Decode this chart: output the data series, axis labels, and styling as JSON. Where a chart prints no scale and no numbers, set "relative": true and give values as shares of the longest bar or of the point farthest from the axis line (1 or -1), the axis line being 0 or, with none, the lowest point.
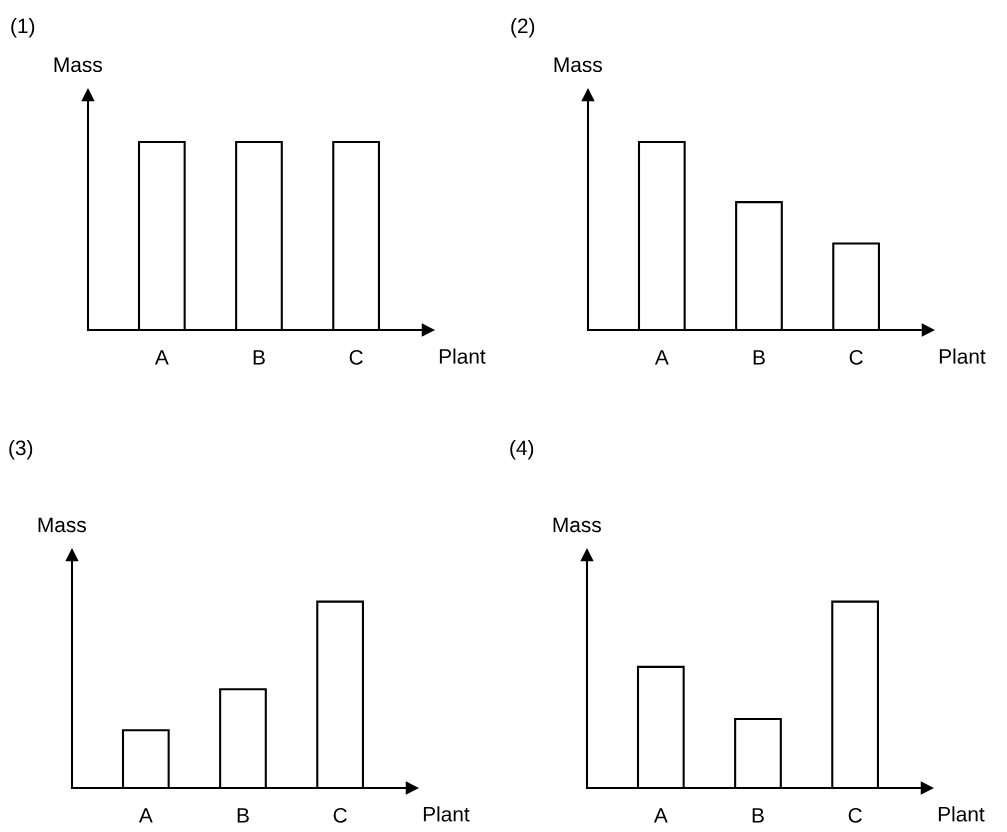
{
  "chart_data": [
    {
      "type": "bar",
      "title": "(1)",
      "xlabel": "Plant",
      "ylabel": "Mass",
      "categories": [
        "A",
        "B",
        "C"
      ],
      "values": [
        1,
        1,
        1
      ],
      "relative": true,
      "color": "#ffffff"
    },
    {
      "type": "bar",
      "title": "(2)",
      "xlabel": "Plant",
      "ylabel": "Mass",
      "categories": [
        "A",
        "B",
        "C"
      ],
      "values": [
        1,
        0.68,
        0.46
      ],
      "relative": true,
      "color": "#ffffff"
    },
    {
      "type": "bar",
      "title": "(3)",
      "xlabel": "Plant",
      "ylabel": "Mass",
      "categories": [
        "A",
        "B",
        "C"
      ],
      "values": [
        0.31,
        0.53,
        1
      ],
      "relative": true,
      "color": "#ffffff"
    },
    {
      "type": "bar",
      "title": "(4)",
      "xlabel": "Plant",
      "ylabel": "Mass",
      "categories": [
        "A",
        "B",
        "C"
      ],
      "values": [
        0.65,
        0.37,
        1
      ],
      "relative": true,
      "color": "#ffffff"
    }
  ]
}
